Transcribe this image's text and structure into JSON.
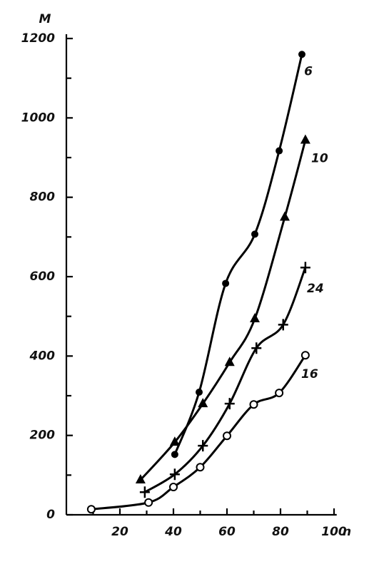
{
  "chart_data": {
    "type": "scatter",
    "x_label": "n",
    "y_label": "M",
    "xlim": [
      0,
      101
    ],
    "ylim": [
      0,
      1200
    ],
    "xticks": [
      20,
      40,
      60,
      80,
      100
    ],
    "yticks": [
      0,
      200,
      400,
      600,
      800,
      1000,
      1200
    ],
    "grid": false,
    "series": [
      {
        "name": "6",
        "color": "#000000",
        "marker": "filled-circle",
        "x": [
          40.5,
          49.6,
          59.5,
          70.4,
          79.5,
          88
        ],
        "values": [
          152,
          309,
          583,
          707,
          917,
          1160
        ]
      },
      {
        "name": "10",
        "color": "#000000",
        "marker": "triangle",
        "x": [
          27.7,
          40.5,
          51,
          61,
          70.4,
          81.6,
          89.3
        ],
        "values": [
          88,
          183,
          280,
          384,
          494,
          750,
          944
        ]
      },
      {
        "name": "24",
        "color": "#000000",
        "marker": "cross",
        "x": [
          29.3,
          40.5,
          51,
          61,
          71,
          81,
          89.3
        ],
        "values": [
          57,
          102,
          174,
          280,
          420,
          479,
          623
        ]
      },
      {
        "name": "16",
        "color": "#000000",
        "marker": "open-circle",
        "x": [
          9.3,
          30.7,
          40,
          50,
          60,
          70,
          79.5,
          89.3
        ],
        "values": [
          14,
          31,
          70,
          120,
          199,
          278,
          307,
          402
        ]
      }
    ]
  }
}
